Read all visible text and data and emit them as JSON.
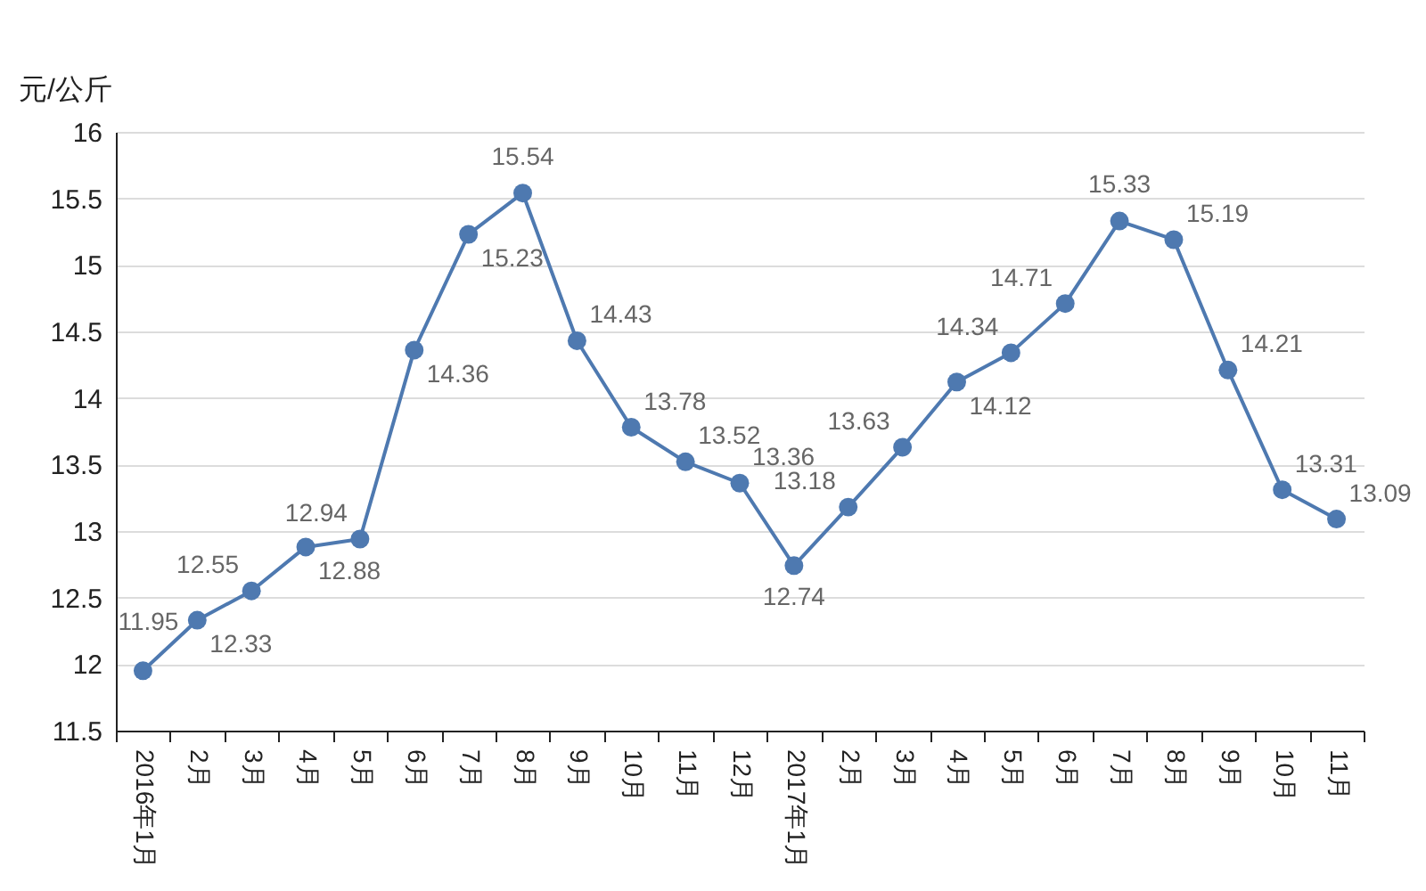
{
  "chart_data": {
    "type": "line",
    "ylabel": "元/公斤",
    "categories": [
      "2016年1月",
      "2月",
      "3月",
      "4月",
      "5月",
      "6月",
      "7月",
      "8月",
      "9月",
      "10月",
      "11月",
      "12月",
      "2017年1月",
      "2月",
      "3月",
      "4月",
      "5月",
      "6月",
      "7月",
      "8月",
      "9月",
      "10月",
      "11月"
    ],
    "series": [
      {
        "color": "#4e79b0",
        "values": [
          11.95,
          12.33,
          12.55,
          12.88,
          12.94,
          14.36,
          15.23,
          15.54,
          14.43,
          13.78,
          13.52,
          13.36,
          12.74,
          13.18,
          13.63,
          14.12,
          14.34,
          14.71,
          15.33,
          15.19,
          14.21,
          13.31,
          13.09
        ]
      }
    ],
    "ylim": [
      11.5,
      16
    ],
    "yticks": [
      11.5,
      12,
      12.5,
      13,
      13.5,
      14,
      14.5,
      15,
      15.5,
      16
    ],
    "grid": "y",
    "marker": "circle",
    "data_labels": true,
    "legend": false
  }
}
